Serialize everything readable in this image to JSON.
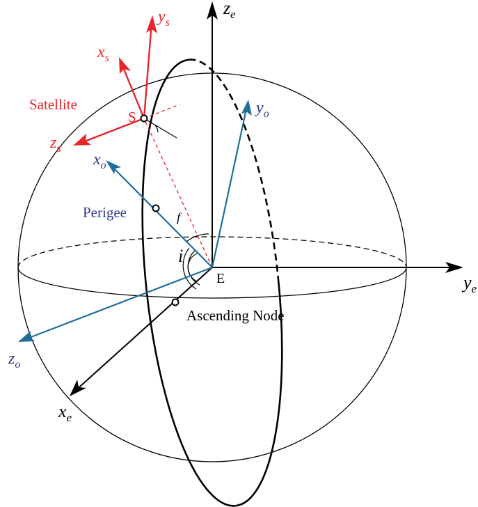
{
  "labels": {
    "earth_z": "z",
    "earth_z_sub": "e",
    "earth_y": "y",
    "earth_y_sub": "e",
    "earth_x": "x",
    "earth_x_sub": "e",
    "orbit_x": "x",
    "orbit_x_sub": "o",
    "orbit_y": "y",
    "orbit_y_sub": "o",
    "orbit_z": "z",
    "orbit_z_sub": "o",
    "sat_x": "x",
    "sat_x_sub": "s",
    "sat_y": "y",
    "sat_y_sub": "s",
    "sat_z": "z",
    "sat_z_sub": "s",
    "satellite": "Satellite",
    "satellite_point": "S",
    "perigee": "Perigee",
    "ascending_node": "Ascending Node",
    "center": "E",
    "inclination": "i",
    "true_anomaly": "f"
  },
  "colors": {
    "earth_axes": "#000000",
    "orbit_axes": "#1f6e9c",
    "satellite_axes": "#e8232a",
    "perigee_text": "#2b3990",
    "satellite_text": "#e8232a",
    "orbit_label_text": "#2b3990"
  }
}
